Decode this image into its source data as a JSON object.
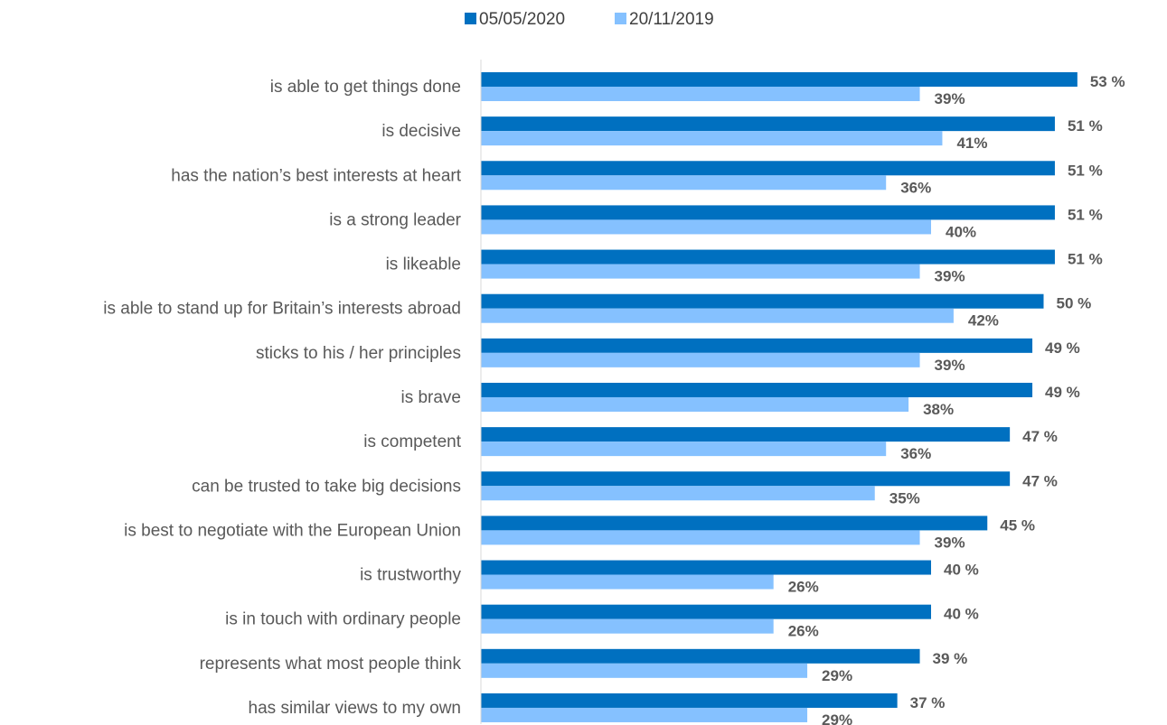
{
  "chart_data": {
    "type": "bar",
    "orientation": "horizontal",
    "categories": [
      "is able to get things done",
      "is decisive",
      "has the nation’s best interests at heart",
      "is a strong leader",
      "is likeable",
      "is able to stand up for Britain’s interests abroad",
      "sticks to his / her principles ",
      "is brave",
      "is competent",
      "can be trusted to take big decisions",
      "is best to negotiate with the European Union",
      "is trustworthy",
      "is in touch with ordinary people",
      "represents what most people think",
      "has similar views to my own"
    ],
    "series": [
      {
        "name": "05/05/2020",
        "color": "#0070C0",
        "values": [
          53,
          51,
          51,
          51,
          51,
          50,
          49,
          49,
          47,
          47,
          45,
          40,
          40,
          39,
          37
        ],
        "labels": [
          "53 %",
          "51 %",
          "51 %",
          "51 %",
          "51 %",
          "50 %",
          "49 %",
          "49 %",
          "47 %",
          "47 %",
          "45 %",
          "40 %",
          "40 %",
          "39 %",
          "37 %"
        ]
      },
      {
        "name": "20/11/2019",
        "color": "#85C1FF",
        "values": [
          39,
          41,
          36,
          40,
          39,
          42,
          39,
          38,
          36,
          35,
          39,
          26,
          26,
          29,
          29
        ],
        "labels": [
          "39%",
          "41%",
          "36%",
          "40%",
          "39%",
          "42%",
          "39%",
          "38%",
          "36%",
          "35%",
          "39%",
          "26%",
          "26%",
          "29%",
          "29%"
        ]
      }
    ],
    "xlim": [
      0,
      60
    ],
    "grid": false,
    "legend": "top-center",
    "axis_color": "#D9D9D9"
  }
}
